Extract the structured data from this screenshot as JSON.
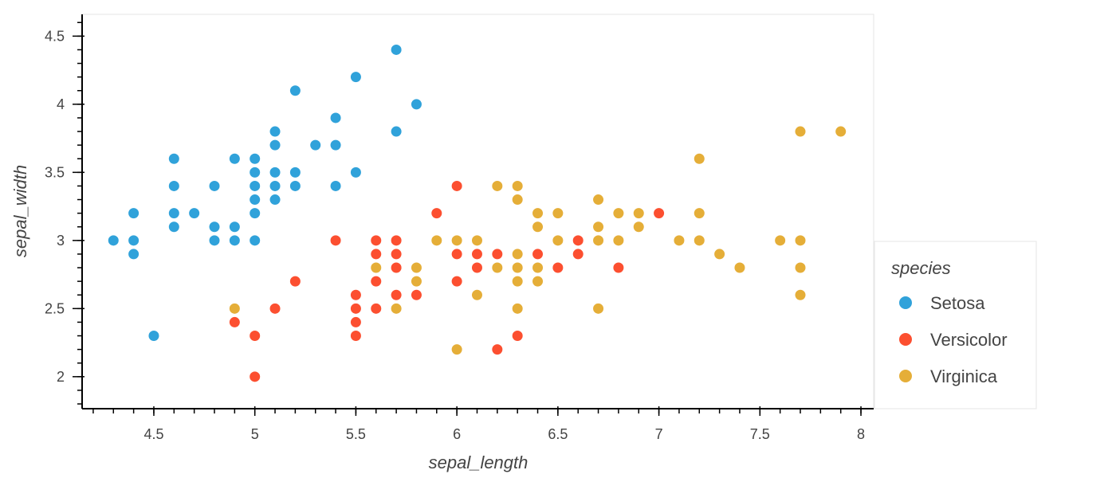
{
  "chart_data": {
    "type": "scatter",
    "xlabel": "sepal_length",
    "ylabel": "sepal_width",
    "xlim": [
      4.145,
      8.063
    ],
    "ylim": [
      1.765,
      4.66
    ],
    "x_ticks": [
      4.5,
      5,
      5.5,
      6,
      6.5,
      7,
      7.5,
      8
    ],
    "x_tick_labels": [
      "4.5",
      "5",
      "5.5",
      "6",
      "6.5",
      "7",
      "7.5",
      "8"
    ],
    "y_ticks": [
      2,
      2.5,
      3,
      3.5,
      4,
      4.5
    ],
    "y_tick_labels": [
      "2",
      "2.5",
      "3",
      "3.5",
      "4",
      "4.5"
    ],
    "minor_tick_step": 0.1,
    "grid": false,
    "legend": {
      "title": "species",
      "placement": "right"
    },
    "series": [
      {
        "name": "Setosa",
        "color": "#30a2da",
        "points": [
          [
            5.1,
            3.5
          ],
          [
            4.9,
            3.0
          ],
          [
            4.7,
            3.2
          ],
          [
            4.6,
            3.1
          ],
          [
            5.0,
            3.6
          ],
          [
            5.4,
            3.9
          ],
          [
            4.6,
            3.4
          ],
          [
            5.0,
            3.4
          ],
          [
            4.4,
            2.9
          ],
          [
            4.9,
            3.1
          ],
          [
            5.4,
            3.7
          ],
          [
            4.8,
            3.4
          ],
          [
            4.8,
            3.0
          ],
          [
            4.3,
            3.0
          ],
          [
            5.8,
            4.0
          ],
          [
            5.7,
            4.4
          ],
          [
            5.4,
            3.9
          ],
          [
            5.1,
            3.5
          ],
          [
            5.7,
            3.8
          ],
          [
            5.1,
            3.8
          ],
          [
            5.4,
            3.4
          ],
          [
            5.1,
            3.7
          ],
          [
            4.6,
            3.6
          ],
          [
            5.1,
            3.3
          ],
          [
            4.8,
            3.4
          ],
          [
            5.0,
            3.0
          ],
          [
            5.0,
            3.4
          ],
          [
            5.2,
            3.5
          ],
          [
            5.2,
            3.4
          ],
          [
            4.7,
            3.2
          ],
          [
            4.8,
            3.1
          ],
          [
            5.4,
            3.4
          ],
          [
            5.2,
            4.1
          ],
          [
            5.5,
            4.2
          ],
          [
            4.9,
            3.1
          ],
          [
            5.0,
            3.2
          ],
          [
            5.5,
            3.5
          ],
          [
            4.9,
            3.6
          ],
          [
            4.4,
            3.0
          ],
          [
            5.1,
            3.4
          ],
          [
            5.0,
            3.5
          ],
          [
            4.5,
            2.3
          ],
          [
            4.4,
            3.2
          ],
          [
            5.0,
            3.5
          ],
          [
            5.1,
            3.8
          ],
          [
            4.8,
            3.0
          ],
          [
            5.1,
            3.8
          ],
          [
            4.6,
            3.2
          ],
          [
            5.3,
            3.7
          ],
          [
            5.0,
            3.3
          ]
        ]
      },
      {
        "name": "Versicolor",
        "color": "#fc4f30",
        "points": [
          [
            7.0,
            3.2
          ],
          [
            6.4,
            3.2
          ],
          [
            6.9,
            3.1
          ],
          [
            5.5,
            2.3
          ],
          [
            6.5,
            2.8
          ],
          [
            5.7,
            2.8
          ],
          [
            6.3,
            3.3
          ],
          [
            4.9,
            2.4
          ],
          [
            6.6,
            2.9
          ],
          [
            5.2,
            2.7
          ],
          [
            5.0,
            2.0
          ],
          [
            5.9,
            3.0
          ],
          [
            6.0,
            2.2
          ],
          [
            6.1,
            2.9
          ],
          [
            5.6,
            2.9
          ],
          [
            6.7,
            3.1
          ],
          [
            5.6,
            3.0
          ],
          [
            5.8,
            2.7
          ],
          [
            6.2,
            2.2
          ],
          [
            5.6,
            2.5
          ],
          [
            5.9,
            3.2
          ],
          [
            6.1,
            2.8
          ],
          [
            6.3,
            2.5
          ],
          [
            6.1,
            2.8
          ],
          [
            6.4,
            2.9
          ],
          [
            6.6,
            3.0
          ],
          [
            6.8,
            2.8
          ],
          [
            6.7,
            3.0
          ],
          [
            6.0,
            2.9
          ],
          [
            5.7,
            2.6
          ],
          [
            5.5,
            2.4
          ],
          [
            5.5,
            2.4
          ],
          [
            5.8,
            2.7
          ],
          [
            6.0,
            2.7
          ],
          [
            5.4,
            3.0
          ],
          [
            6.0,
            3.4
          ],
          [
            6.7,
            3.1
          ],
          [
            6.3,
            2.3
          ],
          [
            5.6,
            3.0
          ],
          [
            5.5,
            2.5
          ],
          [
            5.5,
            2.6
          ],
          [
            6.1,
            3.0
          ],
          [
            5.8,
            2.6
          ],
          [
            5.0,
            2.3
          ],
          [
            5.6,
            2.7
          ],
          [
            5.7,
            3.0
          ],
          [
            5.7,
            2.9
          ],
          [
            6.2,
            2.9
          ],
          [
            5.1,
            2.5
          ],
          [
            5.7,
            2.8
          ]
        ]
      },
      {
        "name": "Virginica",
        "color": "#e5ae38",
        "points": [
          [
            6.3,
            3.3
          ],
          [
            5.8,
            2.7
          ],
          [
            7.1,
            3.0
          ],
          [
            6.3,
            2.9
          ],
          [
            6.5,
            3.0
          ],
          [
            7.6,
            3.0
          ],
          [
            4.9,
            2.5
          ],
          [
            7.3,
            2.9
          ],
          [
            6.7,
            2.5
          ],
          [
            7.2,
            3.6
          ],
          [
            6.5,
            3.2
          ],
          [
            6.4,
            2.7
          ],
          [
            6.8,
            3.0
          ],
          [
            5.7,
            2.5
          ],
          [
            5.8,
            2.8
          ],
          [
            6.4,
            3.2
          ],
          [
            6.5,
            3.0
          ],
          [
            7.7,
            3.8
          ],
          [
            7.7,
            2.6
          ],
          [
            6.0,
            2.2
          ],
          [
            6.9,
            3.2
          ],
          [
            5.6,
            2.8
          ],
          [
            7.7,
            2.8
          ],
          [
            6.3,
            2.7
          ],
          [
            6.7,
            3.3
          ],
          [
            7.2,
            3.2
          ],
          [
            6.2,
            2.8
          ],
          [
            6.1,
            3.0
          ],
          [
            6.4,
            2.8
          ],
          [
            7.2,
            3.0
          ],
          [
            7.4,
            2.8
          ],
          [
            7.9,
            3.8
          ],
          [
            6.4,
            2.8
          ],
          [
            6.3,
            2.8
          ],
          [
            6.1,
            2.6
          ],
          [
            7.7,
            3.0
          ],
          [
            6.3,
            3.4
          ],
          [
            6.4,
            3.1
          ],
          [
            6.0,
            3.0
          ],
          [
            6.9,
            3.1
          ],
          [
            6.7,
            3.1
          ],
          [
            6.9,
            3.1
          ],
          [
            5.8,
            2.7
          ],
          [
            6.8,
            3.2
          ],
          [
            6.7,
            3.3
          ],
          [
            6.7,
            3.0
          ],
          [
            6.3,
            2.5
          ],
          [
            6.5,
            3.0
          ],
          [
            6.2,
            3.4
          ],
          [
            5.9,
            3.0
          ]
        ]
      }
    ]
  }
}
